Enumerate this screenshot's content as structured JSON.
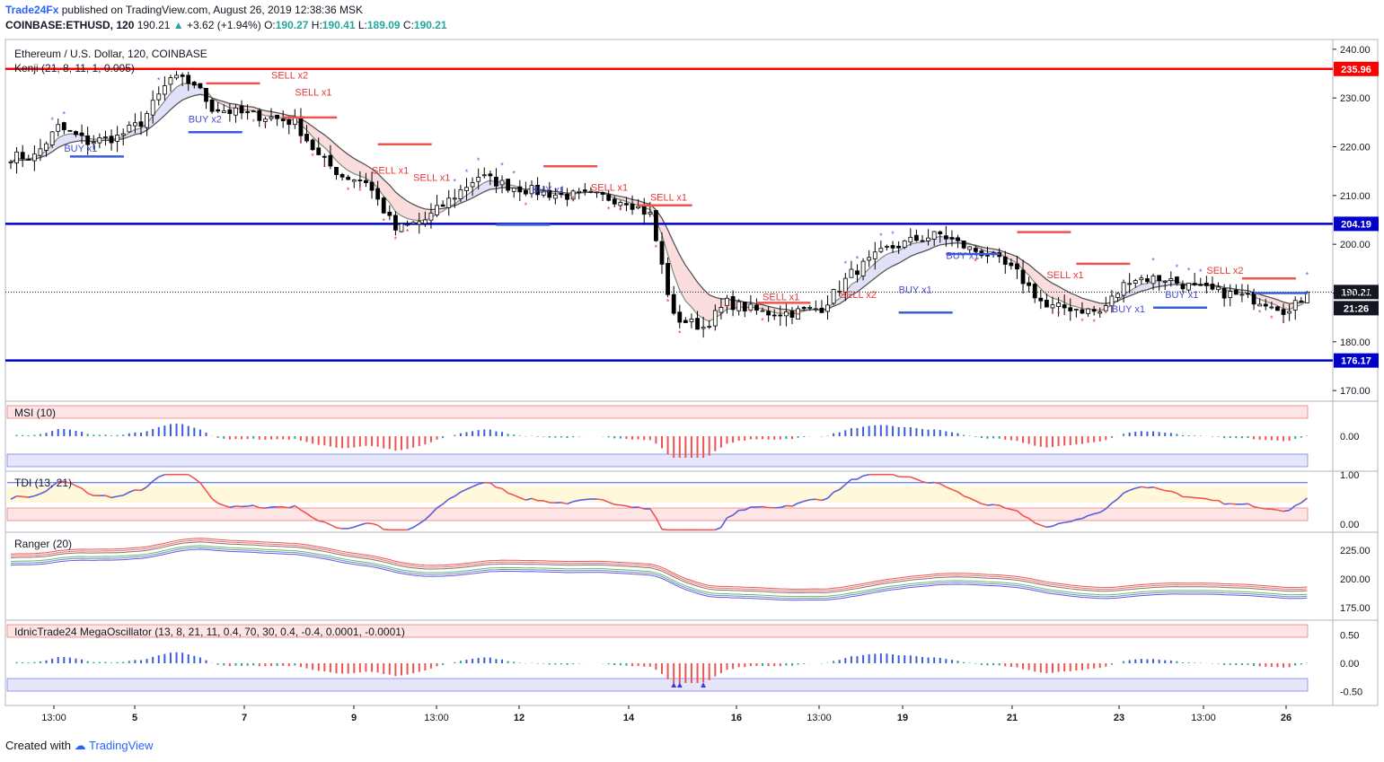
{
  "header": {
    "publisher": "Trade24Fx",
    "published_text": "published on TradingView.com, August 26, 2019 12:38:36 MSK",
    "symbol": "COINBASE:ETHUSD, 120",
    "last": "190.21",
    "change": "+3.62 (+1.94%)",
    "o_label": "O:",
    "o": "190.27",
    "h_label": "H:",
    "h": "190.41",
    "l_label": "L:",
    "l": "189.09",
    "c_label": "C:",
    "c": "190.21"
  },
  "footer": {
    "created_with": "Created with",
    "brand": "TradingView"
  },
  "colors": {
    "up": "#26a69a",
    "down": "#ef5350",
    "blue": "#0000ff",
    "red": "#ff0000",
    "axis": "#131722"
  },
  "chart_data": {
    "type": "candlestick",
    "title": "Ethereum / U.S. Dollar, 120, COINBASE",
    "indicator_title": "Kenji (21, 8, 11, 1, 0.005)",
    "ylim": [
      168,
      242
    ],
    "y_ticks": [
      "240.00",
      "230.00",
      "220.00",
      "210.00",
      "200.00",
      "190.00",
      "180.00",
      "170.00"
    ],
    "x_tick_labels": [
      "13:00",
      "5",
      "7",
      "9",
      "13:00",
      "12",
      "14",
      "16",
      "13:00",
      "19",
      "21",
      "23",
      "13:00",
      "26"
    ],
    "horizontal_lines": [
      {
        "value": 235.96,
        "label": "235.96",
        "color": "#ff0000"
      },
      {
        "value": 204.19,
        "label": "204.19",
        "color": "#0000cc"
      },
      {
        "value": 176.17,
        "label": "176.17",
        "color": "#0000cc"
      }
    ],
    "last_price": {
      "value": 190.21,
      "label": "190.21",
      "countdown": "21:26"
    },
    "price_path": [
      [
        0,
        218
      ],
      [
        4,
        218
      ],
      [
        8,
        224
      ],
      [
        13,
        221
      ],
      [
        18,
        222
      ],
      [
        22,
        225
      ],
      [
        27,
        234
      ],
      [
        31,
        233
      ],
      [
        34,
        228
      ],
      [
        38,
        227
      ],
      [
        44,
        226
      ],
      [
        48,
        225
      ],
      [
        52,
        218
      ],
      [
        56,
        214
      ],
      [
        60,
        213
      ],
      [
        65,
        203
      ],
      [
        70,
        205
      ],
      [
        74,
        209
      ],
      [
        79,
        214
      ],
      [
        84,
        212
      ],
      [
        88,
        211
      ],
      [
        93,
        210
      ],
      [
        98,
        210
      ],
      [
        104,
        209
      ],
      [
        108,
        206
      ],
      [
        112,
        185
      ],
      [
        117,
        183
      ],
      [
        121,
        188
      ],
      [
        127,
        186
      ],
      [
        132,
        186
      ],
      [
        137,
        187
      ],
      [
        142,
        194
      ],
      [
        148,
        199
      ],
      [
        153,
        201
      ],
      [
        157,
        202
      ],
      [
        162,
        199
      ],
      [
        165,
        198
      ],
      [
        170,
        194
      ],
      [
        175,
        187
      ],
      [
        179,
        187
      ],
      [
        184,
        186
      ],
      [
        189,
        193
      ],
      [
        195,
        193
      ],
      [
        200,
        191
      ],
      [
        205,
        190
      ],
      [
        209,
        189
      ],
      [
        213,
        188
      ],
      [
        216,
        186
      ],
      [
        218,
        189
      ],
      [
        220,
        190
      ]
    ],
    "annotations": [
      {
        "text": "SELL x2",
        "series": "sell"
      },
      {
        "text": "SELL x1",
        "series": "sell"
      },
      {
        "text": "BUY x2",
        "series": "buy"
      },
      {
        "text": "BUY x1",
        "series": "buy"
      }
    ],
    "panes": [
      {
        "name": "MSI (10)",
        "ticks": [
          "0.00"
        ]
      },
      {
        "name": "TDI (13, 21)",
        "ticks": [
          "1.00",
          "0.00"
        ]
      },
      {
        "name": "Ranger (20)",
        "ticks": [
          "225.00",
          "200.00",
          "175.00"
        ]
      },
      {
        "name": "IdnicTrade24 MegaOscillator (13, 8, 21, 11, 0.4, 70, 30, 0.4, -0.4, 0.0001, -0.0001)",
        "ticks": [
          "0.50",
          "0.00",
          "-0.50"
        ]
      }
    ]
  }
}
